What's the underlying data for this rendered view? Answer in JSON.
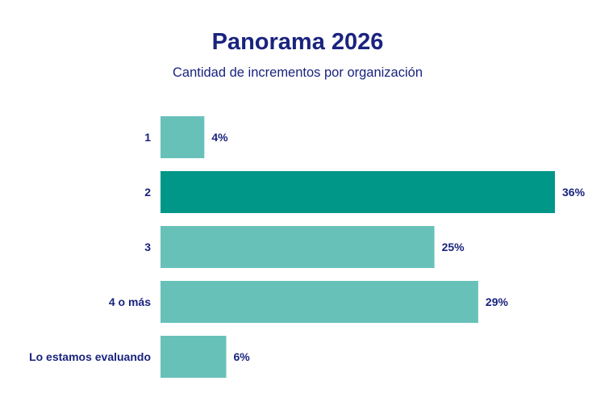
{
  "chart_data": {
    "type": "bar",
    "orientation": "horizontal",
    "title": "Panorama 2026",
    "subtitle": "Cantidad de incrementos por organización",
    "categories": [
      "1",
      "2",
      "3",
      "4 o más",
      "Lo estamos evaluando"
    ],
    "values": [
      4,
      36,
      25,
      29,
      6
    ],
    "value_labels": [
      "4%",
      "36%",
      "25%",
      "29%",
      "6%"
    ],
    "highlight_index": 1,
    "xlim": [
      0,
      36
    ],
    "grid": false,
    "legend": "none"
  },
  "colors": {
    "text": "#1a237e",
    "bar": "#67c1b9",
    "bar_highlight": "#009688"
  }
}
